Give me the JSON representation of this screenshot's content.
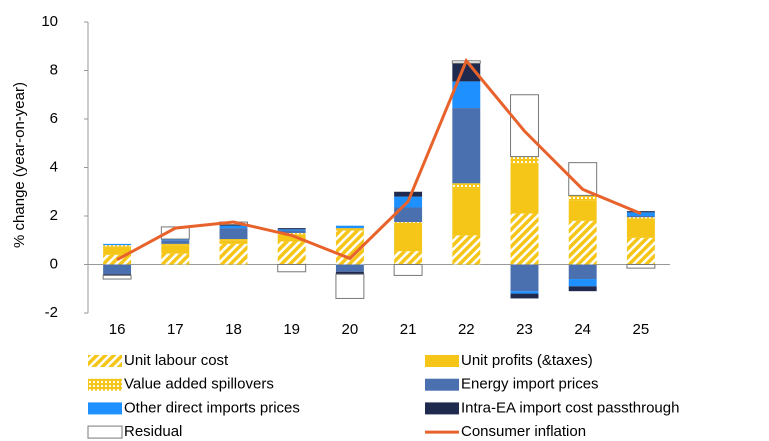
{
  "chart_data": {
    "type": "bar",
    "y_label": "% change (year-on-year)",
    "categories": [
      "16",
      "17",
      "18",
      "19",
      "20",
      "21",
      "22",
      "23",
      "24",
      "25"
    ],
    "ylim": [
      -2,
      10
    ],
    "yticks": [
      -2,
      0,
      2,
      4,
      6,
      8,
      10
    ],
    "series": [
      {
        "name": "Unit labour cost",
        "color": "#f5c518",
        "pattern": "hatch",
        "values": [
          0.4,
          0.45,
          0.85,
          0.95,
          1.4,
          0.55,
          1.2,
          2.1,
          1.8,
          1.1
        ]
      },
      {
        "name": "Unit profits (&taxes)",
        "color": "#f5c518",
        "values": [
          0.35,
          0.35,
          0.15,
          0.3,
          0.1,
          1.1,
          1.95,
          2.05,
          0.85,
          0.8
        ]
      },
      {
        "name": "Value added spillovers",
        "color": "#f5c518",
        "pattern": "dots",
        "values": [
          0.05,
          0.05,
          0.05,
          0.05,
          0.0,
          0.1,
          0.2,
          0.3,
          0.2,
          0.05
        ]
      },
      {
        "name": "Energy import prices",
        "color": "#4a70b0",
        "values": [
          -0.4,
          0.15,
          0.45,
          0.1,
          -0.3,
          0.6,
          3.1,
          -1.1,
          -0.6,
          0.05
        ]
      },
      {
        "name": "Other direct imports prices",
        "color": "#1e90ff",
        "values": [
          0.05,
          0.05,
          0.1,
          0.05,
          0.1,
          0.45,
          1.1,
          -0.1,
          -0.3,
          0.15
        ]
      },
      {
        "name": "Intra-EA import cost passthrough",
        "color": "#1f2a4e",
        "values": [
          -0.05,
          0.0,
          0.05,
          0.05,
          -0.1,
          0.2,
          0.75,
          -0.2,
          -0.2,
          0.05
        ]
      },
      {
        "name": "Residual",
        "color": "#ffffff",
        "values": [
          -0.15,
          0.5,
          0.1,
          -0.3,
          -1.0,
          -0.45,
          0.1,
          2.55,
          1.35,
          -0.15
        ]
      },
      {
        "name": "Consumer inflation",
        "color": "#e8632b",
        "type": "line",
        "values": [
          0.2,
          1.5,
          1.75,
          1.2,
          0.25,
          2.6,
          8.4,
          5.5,
          3.1,
          2.1
        ]
      }
    ]
  }
}
